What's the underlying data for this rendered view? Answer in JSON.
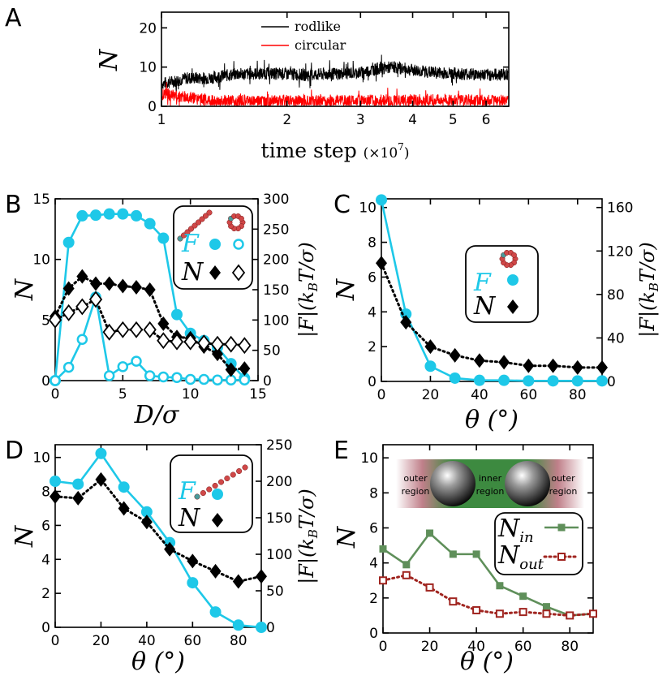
{
  "colors": {
    "cyan": "#1ec8e8",
    "black": "#000000",
    "red": "#ff0000",
    "green": "#5f8f5a",
    "darkred": "#a02520"
  },
  "chart_data": [
    {
      "id": "A",
      "type": "line",
      "panel_label": "A",
      "xlabel": "time step",
      "xlabel_suffix": "(×10",
      "xlabel_exp": "7",
      "xlabel_close": ")",
      "ylabel": "N",
      "xscale": "log",
      "xlim": [
        1,
        6.8
      ],
      "ylim": [
        0,
        24
      ],
      "xticks": [
        1,
        2,
        3,
        4,
        5,
        6
      ],
      "xtick_labels": [
        "1",
        "2",
        "3",
        "4",
        "5",
        "6"
      ],
      "yticks": [
        0,
        10,
        20
      ],
      "ytick_labels": [
        "0",
        "10",
        "20"
      ],
      "series": [
        {
          "name": "rodlike",
          "color": "#000000",
          "mean_profile": [
            [
              1,
              5.8
            ],
            [
              1.05,
              6.2
            ],
            [
              1.15,
              7.2
            ],
            [
              1.3,
              7.2
            ],
            [
              1.5,
              8.2
            ],
            [
              1.8,
              8.4
            ],
            [
              2.2,
              8.0
            ],
            [
              2.6,
              8.3
            ],
            [
              3.0,
              8.6
            ],
            [
              3.3,
              9.6
            ],
            [
              3.6,
              10.0
            ],
            [
              4.0,
              9.2
            ],
            [
              4.5,
              8.6
            ],
            [
              5.0,
              8.4
            ],
            [
              5.5,
              8.2
            ],
            [
              6.0,
              8.0
            ],
            [
              6.8,
              8.2
            ]
          ],
          "noise": 1.6
        },
        {
          "name": "circular",
          "color": "#ff0000",
          "mean_profile": [
            [
              1,
              3.2
            ],
            [
              1.1,
              2.6
            ],
            [
              1.3,
              1.4
            ],
            [
              1.6,
              1.3
            ],
            [
              2.0,
              1.4
            ],
            [
              3.0,
              1.4
            ],
            [
              4.0,
              1.5
            ],
            [
              5.0,
              1.6
            ],
            [
              6.0,
              1.4
            ],
            [
              6.8,
              1.5
            ]
          ],
          "noise": 1.6
        }
      ],
      "legend": [
        "rodlike",
        "circular"
      ]
    },
    {
      "id": "B",
      "type": "line",
      "panel_label": "B",
      "xlabel": "D/σ",
      "ylabel": "N",
      "ylabel_right": "|F|(k_BT/σ)",
      "xlim": [
        0,
        15
      ],
      "ylim": [
        0,
        15
      ],
      "y2lim": [
        0,
        300
      ],
      "xticks": [
        0,
        5,
        10,
        15
      ],
      "xtick_labels": [
        "0",
        "5",
        "10",
        "15"
      ],
      "yticks": [
        0,
        5,
        10,
        15
      ],
      "ytick_labels": [
        "0",
        "5",
        "10",
        "15"
      ],
      "y2ticks": [
        0,
        50,
        100,
        150,
        200,
        250,
        300
      ],
      "y2tick_labels": [
        "0",
        "50",
        "100",
        "150",
        "200",
        "250",
        "300"
      ],
      "series": [
        {
          "name": "F rodlike",
          "axis": "right",
          "style": "cyan-filled-circle",
          "x": [
            0,
            1,
            2,
            3,
            4,
            5,
            6,
            7,
            8,
            9,
            10,
            11,
            12,
            13,
            14
          ],
          "y": [
            0,
            228,
            272,
            273,
            275,
            275,
            272,
            259,
            235,
            109,
            78,
            66,
            55,
            28,
            4
          ]
        },
        {
          "name": "F circular",
          "axis": "right",
          "style": "cyan-open-circle",
          "x": [
            0,
            1,
            2,
            3,
            4,
            5,
            6,
            7,
            8,
            9,
            10,
            11,
            12,
            13,
            14
          ],
          "y": [
            0,
            22,
            68,
            138,
            8,
            23,
            32,
            8,
            6,
            5,
            2,
            2,
            1,
            1,
            1
          ]
        },
        {
          "name": "N rodlike",
          "axis": "left",
          "style": "black-filled-diamond",
          "x": [
            0,
            1,
            2,
            3,
            4,
            5,
            6,
            7,
            8,
            9,
            10,
            11,
            12,
            13,
            14
          ],
          "y": [
            5.3,
            7.6,
            8.6,
            8.0,
            8.0,
            7.8,
            7.7,
            7.5,
            4.7,
            3.6,
            3.5,
            2.8,
            2.2,
            0.9,
            1.0
          ]
        },
        {
          "name": "N circular",
          "axis": "left",
          "style": "black-open-diamond",
          "x": [
            0,
            1,
            2,
            3,
            4,
            5,
            6,
            7,
            8,
            9,
            10,
            11,
            12,
            13,
            14
          ],
          "y": [
            5.0,
            5.6,
            6.1,
            6.7,
            4.0,
            4.2,
            4.2,
            4.2,
            3.3,
            3.2,
            3.2,
            3.1,
            3.0,
            3.0,
            2.9
          ]
        }
      ],
      "legend": [
        "F",
        "N"
      ]
    },
    {
      "id": "C",
      "type": "line",
      "panel_label": "C",
      "xlabel": "θ (°)",
      "ylabel": "N",
      "ylabel_right": "|F|(k_BT/σ)",
      "xlim": [
        0,
        90
      ],
      "ylim": [
        0,
        10.5
      ],
      "y2lim": [
        0,
        168
      ],
      "xticks": [
        0,
        20,
        40,
        60,
        80
      ],
      "xtick_labels": [
        "0",
        "20",
        "40",
        "60",
        "80"
      ],
      "yticks": [
        0,
        2,
        4,
        6,
        8,
        10
      ],
      "ytick_labels": [
        "0",
        "2",
        "4",
        "6",
        "8",
        "10"
      ],
      "y2ticks": [
        0,
        40,
        80,
        120,
        160
      ],
      "y2tick_labels": [
        "0",
        "40",
        "80",
        "120",
        "160"
      ],
      "series": [
        {
          "name": "F",
          "axis": "right",
          "style": "cyan-filled-circle",
          "x": [
            0,
            10,
            20,
            30,
            40,
            50,
            60,
            70,
            80,
            90
          ],
          "y": [
            167,
            62,
            14,
            3,
            1,
            1,
            0.5,
            0.5,
            0.5,
            0.5
          ]
        },
        {
          "name": "N",
          "axis": "left",
          "style": "black-filled-diamond",
          "x": [
            0,
            10,
            20,
            30,
            40,
            50,
            60,
            70,
            80,
            90
          ],
          "y": [
            6.8,
            3.4,
            2.0,
            1.5,
            1.2,
            1.1,
            0.9,
            0.9,
            0.8,
            0.8
          ]
        }
      ],
      "legend": [
        "F",
        "N"
      ]
    },
    {
      "id": "D",
      "type": "line",
      "panel_label": "D",
      "xlabel": "θ (°)",
      "ylabel": "N",
      "ylabel_right": "|F|(k_BT/σ)",
      "xlim": [
        0,
        90
      ],
      "ylim": [
        0,
        10.75
      ],
      "y2lim": [
        0,
        250
      ],
      "xticks": [
        0,
        20,
        40,
        60,
        80
      ],
      "xtick_labels": [
        "0",
        "20",
        "40",
        "60",
        "80"
      ],
      "yticks": [
        0,
        2,
        4,
        6,
        8,
        10
      ],
      "ytick_labels": [
        "0",
        "2",
        "4",
        "6",
        "8",
        "10"
      ],
      "y2ticks": [
        0,
        50,
        100,
        150,
        200,
        250
      ],
      "y2tick_labels": [
        "0",
        "50",
        "100",
        "150",
        "200",
        "250"
      ],
      "series": [
        {
          "name": "F",
          "axis": "right",
          "style": "cyan-filled-circle",
          "x": [
            0,
            10,
            20,
            30,
            40,
            50,
            60,
            70,
            80,
            90
          ],
          "y": [
            200,
            196,
            238,
            192,
            158,
            116,
            61,
            21,
            3,
            0
          ]
        },
        {
          "name": "N",
          "axis": "left",
          "style": "black-filled-diamond",
          "x": [
            0,
            10,
            20,
            30,
            40,
            50,
            60,
            70,
            80,
            90
          ],
          "y": [
            7.7,
            7.6,
            8.7,
            7.0,
            6.2,
            4.6,
            3.9,
            3.3,
            2.7,
            3.0
          ]
        }
      ],
      "legend": [
        "F",
        "N"
      ]
    },
    {
      "id": "E",
      "type": "line",
      "panel_label": "E",
      "xlabel": "θ (°)",
      "ylabel": "N",
      "xlim": [
        0,
        90
      ],
      "ylim": [
        0,
        10.75
      ],
      "xticks": [
        0,
        20,
        40,
        60,
        80
      ],
      "xtick_labels": [
        "0",
        "20",
        "40",
        "60",
        "80"
      ],
      "yticks": [
        0,
        2,
        4,
        6,
        8,
        10
      ],
      "ytick_labels": [
        "0",
        "2",
        "4",
        "6",
        "8",
        "10"
      ],
      "series": [
        {
          "name": "N_in",
          "style": "green-filled-square",
          "x": [
            0,
            10,
            20,
            30,
            40,
            50,
            60,
            70,
            80,
            90
          ],
          "y": [
            4.8,
            3.9,
            5.7,
            4.5,
            4.5,
            2.7,
            2.1,
            1.5,
            1.0,
            1.1
          ]
        },
        {
          "name": "N_out",
          "style": "darkred-open-square",
          "x": [
            0,
            10,
            20,
            30,
            40,
            50,
            60,
            70,
            80,
            90
          ],
          "y": [
            3.0,
            3.3,
            2.6,
            1.8,
            1.3,
            1.1,
            1.2,
            1.1,
            1.0,
            1.1
          ]
        }
      ],
      "legend": [
        "N_in",
        "N_out"
      ],
      "inset_labels": {
        "outer_left": [
          "outer",
          "region"
        ],
        "inner": [
          "inner",
          "region"
        ],
        "outer_right": [
          "outer",
          "region"
        ]
      }
    }
  ]
}
